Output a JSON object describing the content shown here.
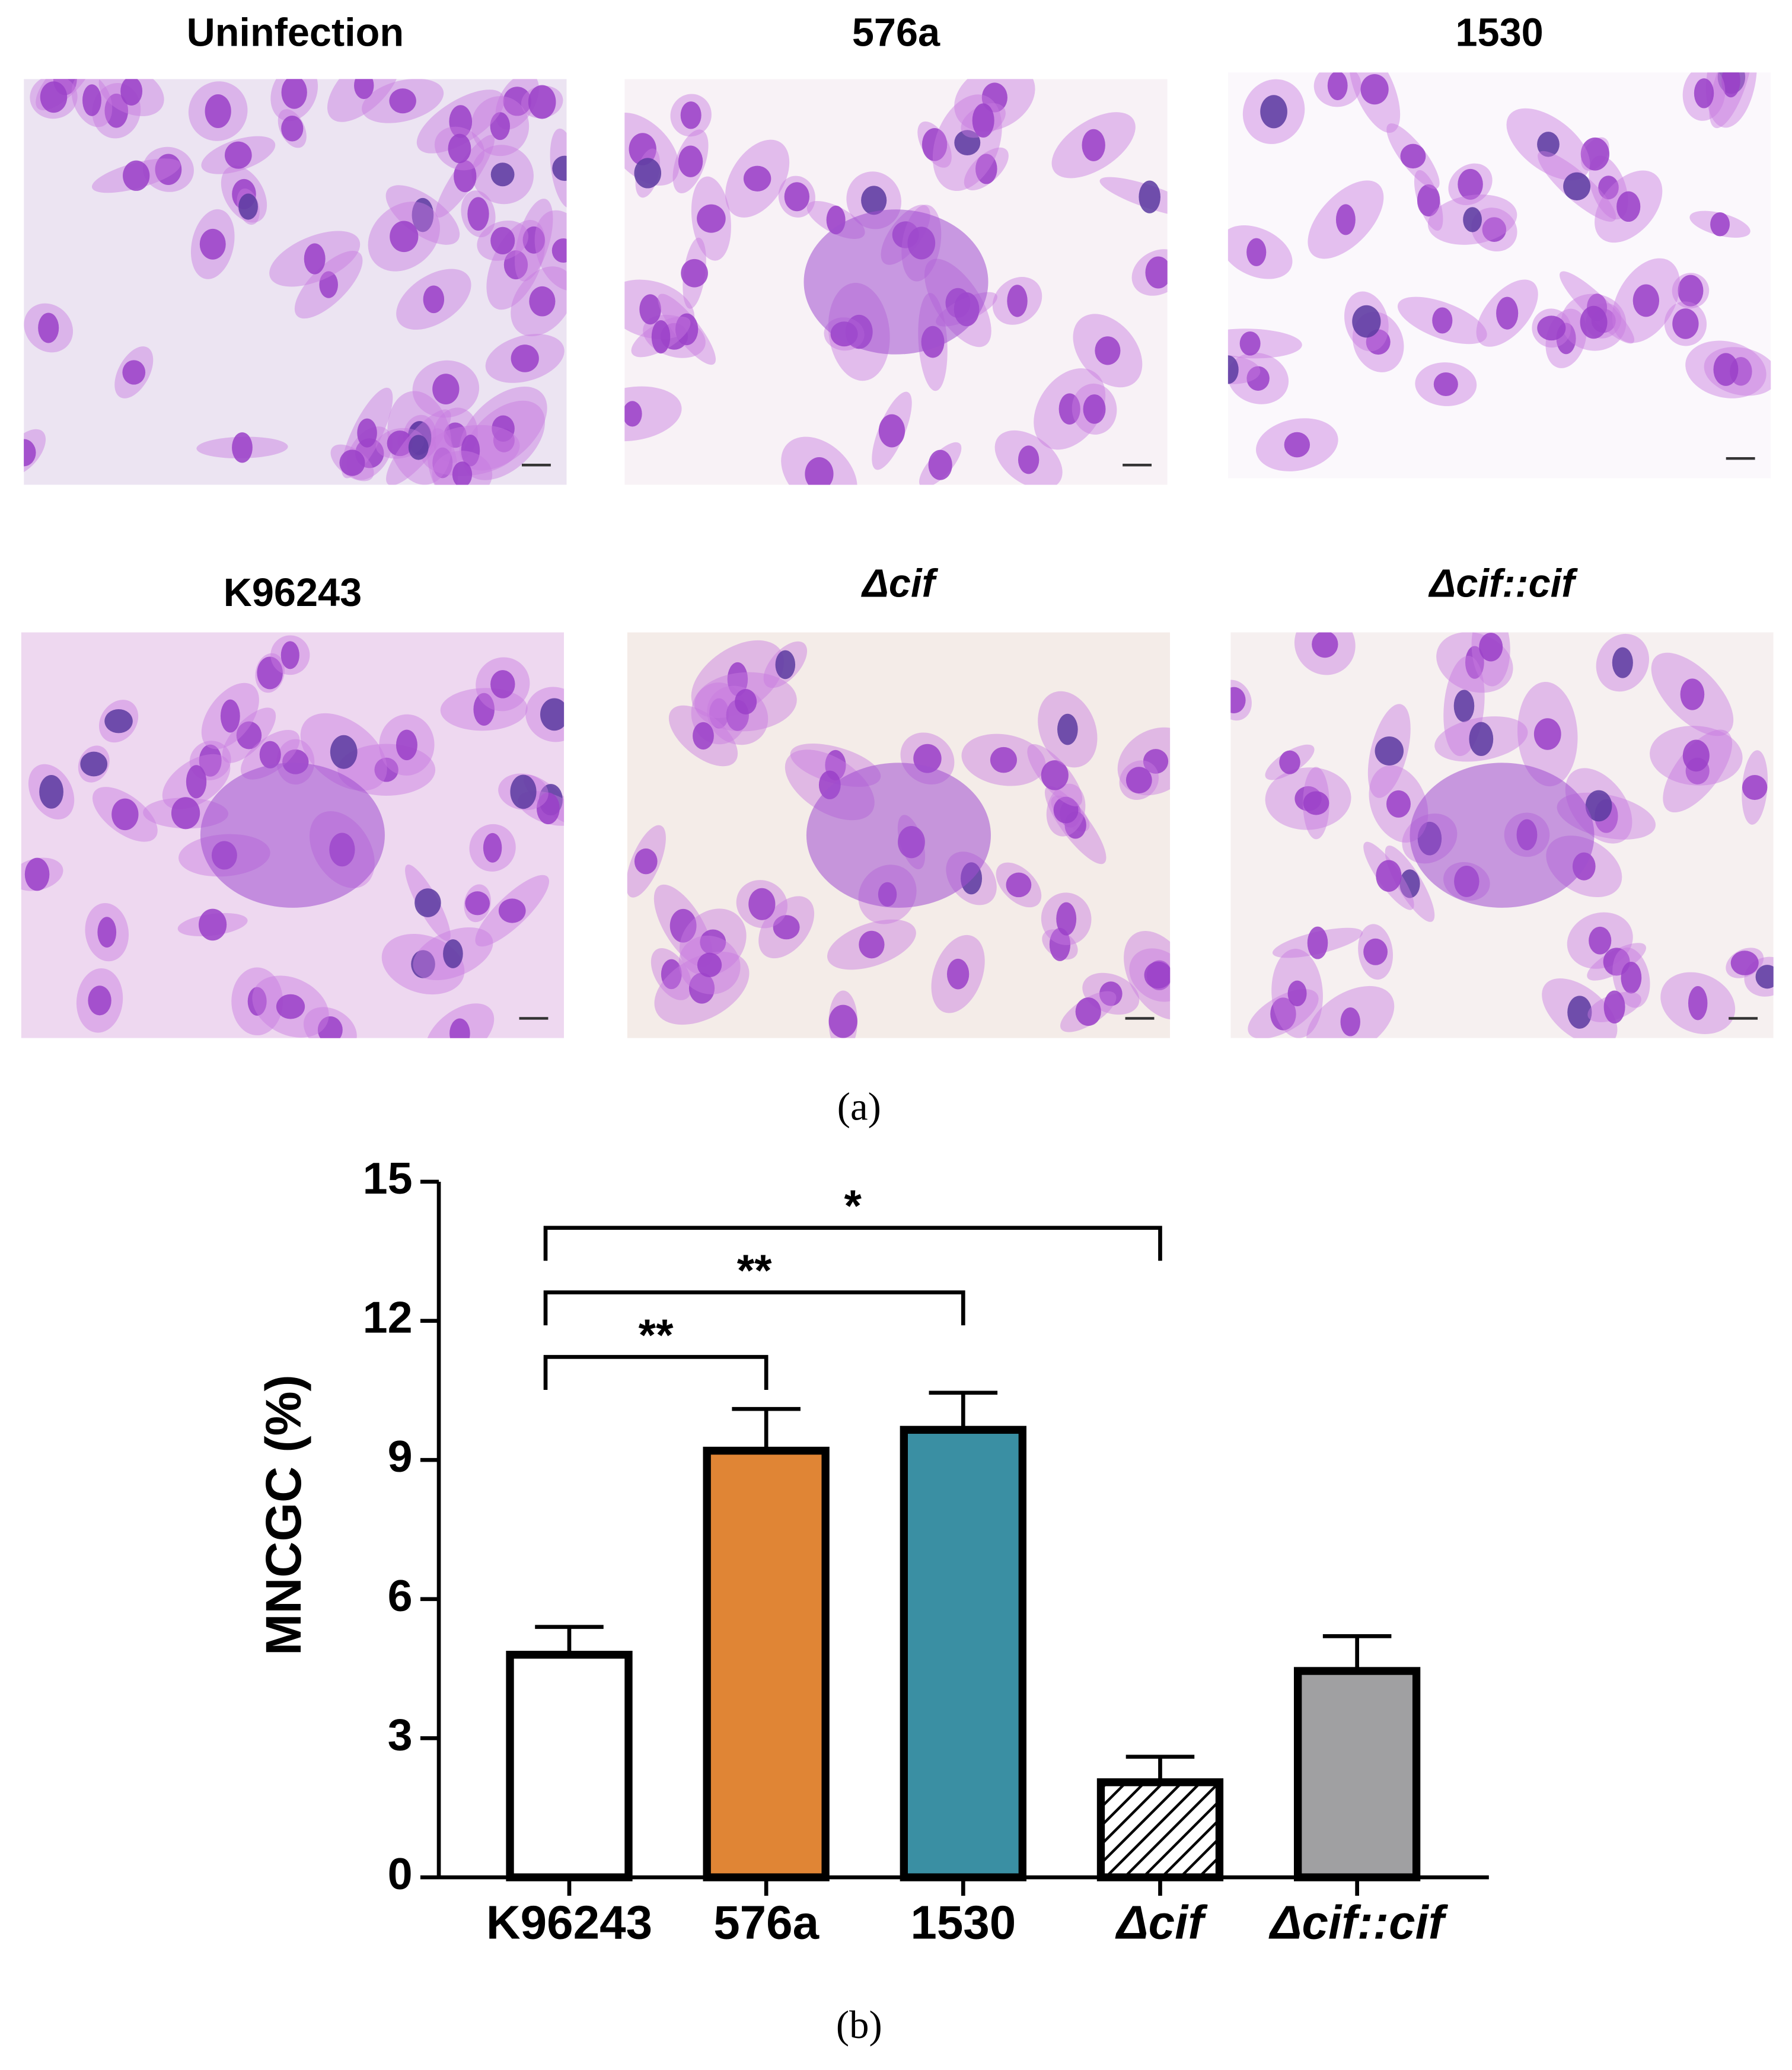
{
  "panel_a": {
    "micrographs": [
      "Uninfection",
      "576a",
      "1530",
      "K96243",
      "Δcif",
      "Δcif::cif"
    ],
    "caption": "(a)"
  },
  "chart_data": {
    "type": "bar",
    "caption": "(b)",
    "y_label": "MNCGC (%)",
    "categories": [
      "K96243",
      "576a",
      "1530",
      "Δcif",
      "Δcif::cif"
    ],
    "values": [
      4.8,
      9.2,
      9.65,
      2.05,
      4.45
    ],
    "errors": [
      0.6,
      0.9,
      0.8,
      0.55,
      0.75
    ],
    "colors": [
      "#ffffff",
      "#e08535",
      "#3a8fa3",
      "#ffffff",
      "#a0a0a2"
    ],
    "hatch": [
      false,
      false,
      false,
      true,
      false
    ],
    "ylim": [
      0,
      15
    ],
    "yticks": [
      0,
      3,
      6,
      9,
      12,
      15
    ],
    "significance": [
      {
        "label": "**",
        "categories": [
          "K96243",
          "576a"
        ]
      },
      {
        "label": "**",
        "categories": [
          "K96243",
          "1530"
        ]
      },
      {
        "label": "*",
        "categories": [
          "K96243",
          "Δcif"
        ]
      }
    ]
  }
}
